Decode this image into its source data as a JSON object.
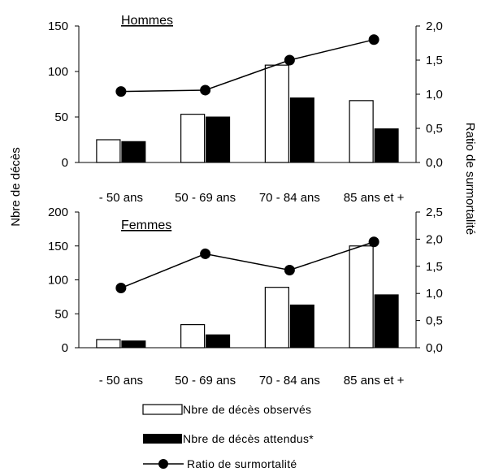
{
  "chart_data": [
    {
      "type": "bar",
      "title": "Hommes",
      "categories": [
        "- 50 ans",
        "50 - 69 ans",
        "70 - 84 ans",
        "85 ans et +"
      ],
      "series": [
        {
          "name": "Nbre de décès observés",
          "values": [
            25,
            53,
            107,
            68
          ],
          "color": "#ffffff"
        },
        {
          "name": "Nbre de décès attendus*",
          "values": [
            23,
            50,
            71,
            37
          ],
          "color": "#000000"
        }
      ],
      "line_series": {
        "name": "Ratio de surmortalité",
        "values": [
          1.04,
          1.06,
          1.5,
          1.8
        ],
        "axis": "right"
      },
      "ylim": [
        0,
        150
      ],
      "yticks": [
        "0",
        "50",
        "100",
        "150"
      ],
      "y2lim": [
        0,
        2
      ],
      "y2ticks": [
        "0,0",
        "0,5",
        "1,0",
        "1,5",
        "2,0"
      ]
    },
    {
      "type": "bar",
      "title": "Femmes",
      "categories": [
        "- 50 ans",
        "50 - 69 ans",
        "70 - 84 ans",
        "85 ans et +"
      ],
      "series": [
        {
          "name": "Nbre de décès observés",
          "values": [
            12,
            34,
            89,
            150
          ],
          "color": "#ffffff"
        },
        {
          "name": "Nbre de décès attendus*",
          "values": [
            10,
            19,
            63,
            78
          ],
          "color": "#000000"
        }
      ],
      "line_series": {
        "name": "Ratio de surmortalité",
        "values": [
          1.1,
          1.73,
          1.43,
          1.95
        ],
        "axis": "right"
      },
      "ylim": [
        0,
        200
      ],
      "yticks": [
        "0",
        "50",
        "100",
        "150",
        "200"
      ],
      "y2lim": [
        0,
        2.5
      ],
      "y2ticks": [
        "0,0",
        "0,5",
        "1,0",
        "1,5",
        "2,0",
        "2,5"
      ]
    }
  ],
  "ylabel": "Nbre de décès",
  "y2label": "Ratio de surmortalité",
  "legend": [
    {
      "key": "observed",
      "label": "Nbre de décès observés"
    },
    {
      "key": "expected",
      "label": "Nbre de décès attendus*"
    },
    {
      "key": "ratio",
      "label": "Ratio de surmortalité"
    }
  ]
}
